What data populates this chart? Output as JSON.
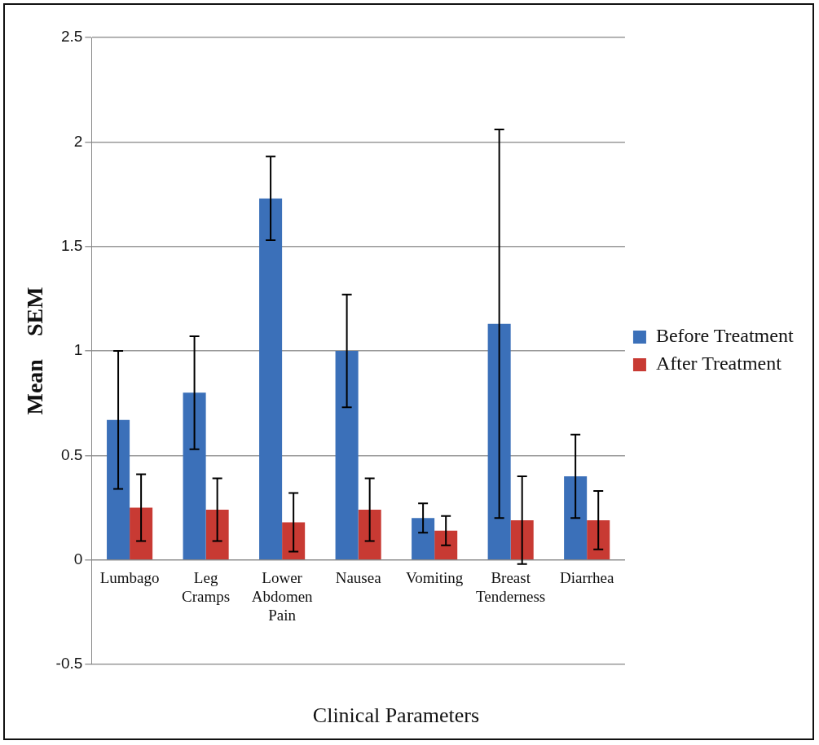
{
  "chart_data": {
    "type": "bar",
    "xlabel": "Clinical Parameters",
    "ylabel": "Mean    SEM",
    "categories": [
      "Lumbago",
      "Leg Cramps",
      "Lower Abdomen Pain",
      "Nausea",
      "Vomiting",
      "Breast Tenderness",
      "Diarrhea"
    ],
    "series": [
      {
        "name": "Before Treatment",
        "color": "#3b70b9",
        "values": [
          0.67,
          0.8,
          1.73,
          1.0,
          0.2,
          1.13,
          0.4
        ],
        "errors": [
          0.33,
          0.27,
          0.2,
          0.27,
          0.07,
          0.93,
          0.2
        ]
      },
      {
        "name": "After Treatment",
        "color": "#c83a33",
        "values": [
          0.25,
          0.24,
          0.18,
          0.24,
          0.14,
          0.19,
          0.19
        ],
        "errors": [
          0.16,
          0.15,
          0.14,
          0.15,
          0.07,
          0.21,
          0.14
        ]
      }
    ],
    "ylim": [
      -0.5,
      2.5
    ],
    "yticks": [
      -0.5,
      0,
      0.5,
      1,
      1.5,
      2,
      2.5
    ],
    "grid": "y",
    "legend": "right"
  }
}
